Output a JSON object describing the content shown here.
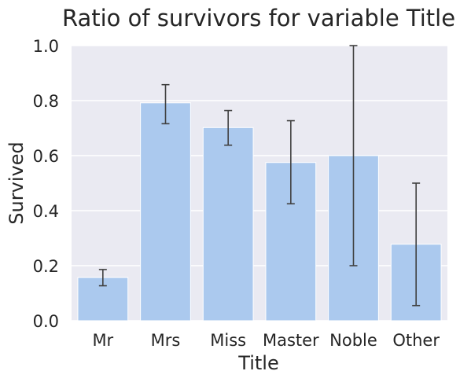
{
  "chart_data": {
    "type": "bar",
    "title": "Ratio of survivors for variable Title",
    "xlabel": "Title",
    "ylabel": "Survived",
    "categories": [
      "Mr",
      "Mrs",
      "Miss",
      "Master",
      "Noble",
      "Other"
    ],
    "values": [
      0.157,
      0.792,
      0.702,
      0.575,
      0.6,
      0.278
    ],
    "error_bars": [
      [
        0.127,
        0.186
      ],
      [
        0.716,
        0.858
      ],
      [
        0.638,
        0.764
      ],
      [
        0.425,
        0.727
      ],
      [
        0.2,
        1.0
      ],
      [
        0.055,
        0.5
      ]
    ],
    "ylim": [
      0,
      1.0
    ],
    "yticks": [
      "0.0",
      "0.2",
      "0.4",
      "0.6",
      "0.8",
      "1.0"
    ],
    "grid": true,
    "colors": {
      "bar": "#abc9ee",
      "background": "#eaeaf2",
      "grid": "#ffffff",
      "error_bar": "#404040",
      "text": "#262626"
    }
  }
}
